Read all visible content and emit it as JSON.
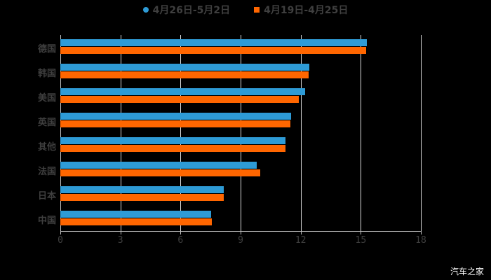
{
  "legend": {
    "series1": {
      "label": "4月26日-5月2日",
      "color": "#2e9bd6"
    },
    "series2": {
      "label": "4月19日-4月25日",
      "color": "#ff6600"
    }
  },
  "watermark": "汽车之家",
  "x_ticks": [
    "0",
    "3",
    "6",
    "9",
    "12",
    "15",
    "18"
  ],
  "chart_data": {
    "type": "bar",
    "orientation": "horizontal",
    "title": "",
    "xlabel": "",
    "ylabel": "",
    "xlim": [
      0,
      18
    ],
    "x_ticks": [
      0,
      3,
      6,
      9,
      12,
      15,
      18
    ],
    "grid": true,
    "legend_position": "top",
    "categories": [
      "德国",
      "韩国",
      "美国",
      "英国",
      "其他",
      "法国",
      "日本",
      "中国"
    ],
    "series": [
      {
        "name": "4月26日-5月2日",
        "color": "#2e9bd6",
        "values": [
          15.3,
          12.43,
          12.22,
          11.52,
          11.24,
          9.8,
          8.16,
          7.53
        ]
      },
      {
        "name": "4月19日-4月25日",
        "color": "#ff6600",
        "values": [
          15.27,
          12.4,
          11.9,
          11.48,
          11.24,
          9.98,
          8.16,
          7.56
        ]
      }
    ]
  }
}
